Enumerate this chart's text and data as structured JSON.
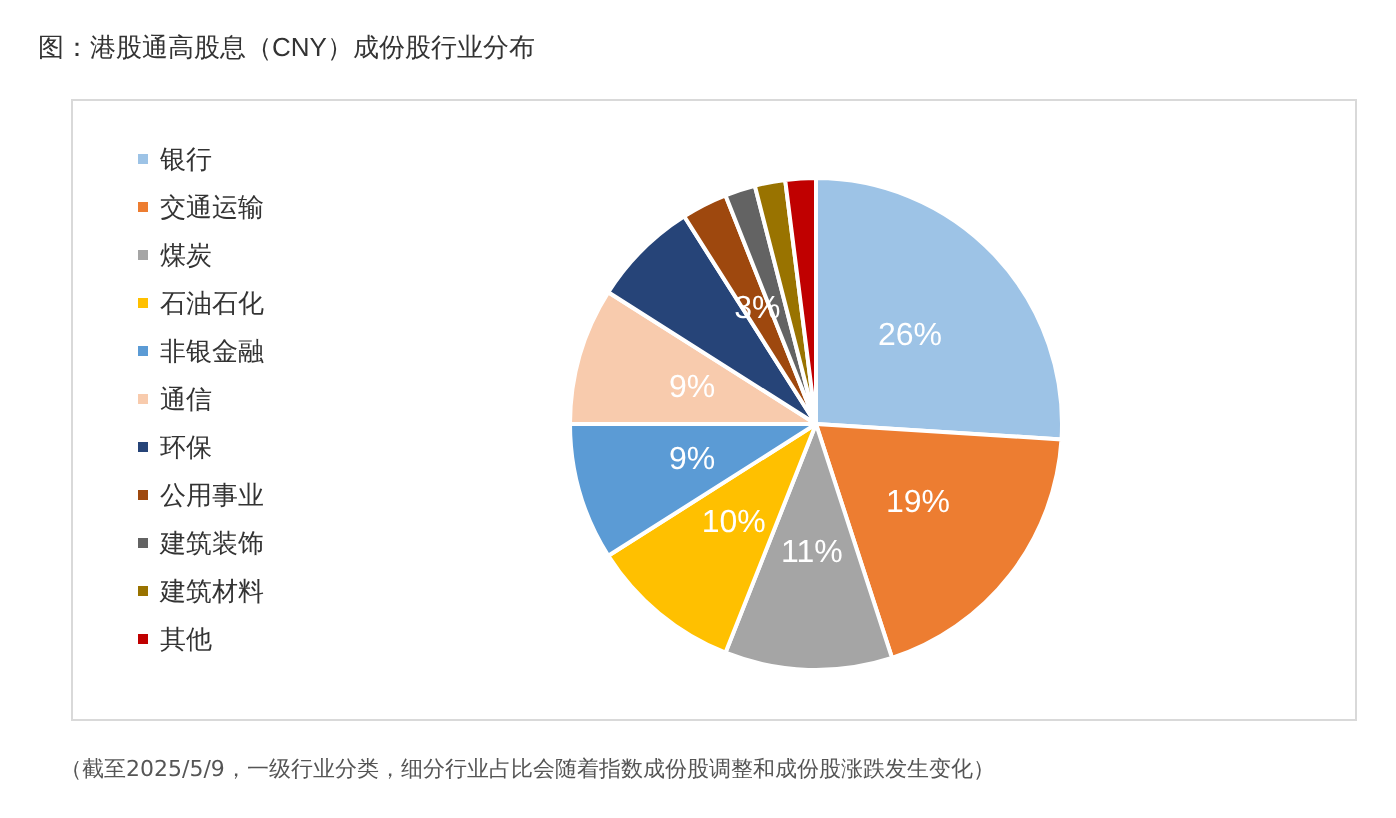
{
  "chart_data": {
    "type": "pie",
    "title": "图：港股通高股息（CNY）成份股行业分布",
    "categories": [
      "银行",
      "交通运输",
      "煤炭",
      "石油石化",
      "非银金融",
      "通信",
      "环保",
      "公用事业",
      "建筑装饰",
      "建筑材料",
      "其他"
    ],
    "values": [
      26,
      19,
      11,
      10,
      9,
      9,
      7,
      3,
      2,
      2,
      2
    ],
    "colors": [
      "#9dc3e6",
      "#ed7d31",
      "#a5a5a5",
      "#ffc000",
      "#5b9bd5",
      "#f8cbad",
      "#264478",
      "#9e480e",
      "#636363",
      "#997300",
      "#c00000"
    ],
    "value_labels": [
      "26%",
      "19%",
      "11%",
      "10%",
      "9%",
      "9%",
      null,
      "3%",
      null,
      null,
      null
    ],
    "legend": "left",
    "annotations": [
      "（截至2025/5/9，一级行业分类，细分行业占比会随着指数成份股调整和成份股涨跌发生变化）"
    ]
  }
}
